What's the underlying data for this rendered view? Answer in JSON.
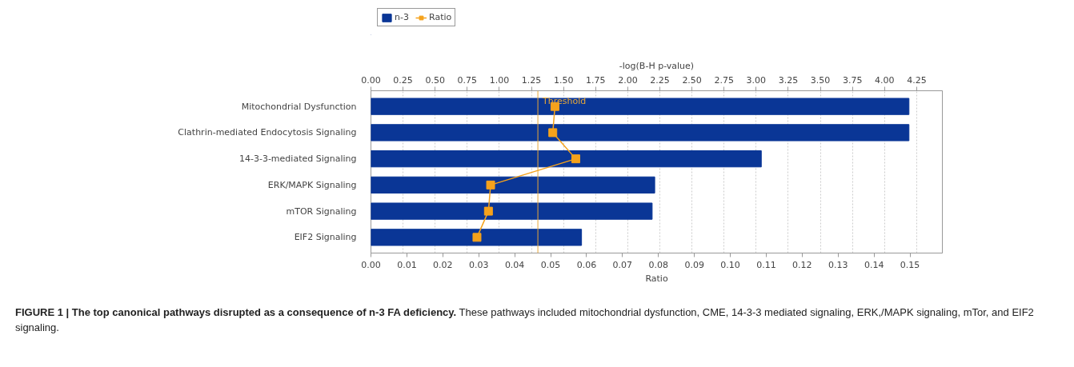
{
  "chart_data": {
    "type": "bar",
    "orientation": "horizontal",
    "title": "FIGURE 1 | The top canonical pathways disrupted as a consequence of n-3 FA deficiency.",
    "annotations": [
      "These pathways included mitochondrial dysfunction, CME, 14-3-3 mediated signaling, ERK,/MAPK signaling, mTor, and EIF2 signaling."
    ],
    "categories": [
      "Mitochondrial Dysfunction",
      "Clathrin-mediated Endocytosis Signaling",
      "14-3-3-mediated Signaling",
      "ERK/MAPK Signaling",
      "mTOR Signaling",
      "EIF2 Signaling"
    ],
    "series": [
      {
        "name": "n-3",
        "axis": "x2",
        "color": "#0a3696",
        "values": [
          4.19,
          4.19,
          3.04,
          2.21,
          2.19,
          1.64
        ]
      },
      {
        "name": "Ratio",
        "type": "line",
        "color": "#f5a21b",
        "values": [
          0.0512,
          0.0506,
          0.057,
          0.0333,
          0.0327,
          0.0295
        ]
      }
    ],
    "xlabel": "Ratio",
    "x2label": "-log(B-H p-value)",
    "xlim": [
      0,
      0.159
    ],
    "xticks": [
      {
        "value": 0,
        "label": "0.00"
      },
      {
        "value": 0.01,
        "label": "0.01"
      },
      {
        "value": 0.02,
        "label": "0.02"
      },
      {
        "value": 0.03,
        "label": "0.03"
      },
      {
        "value": 0.04,
        "label": "0.04"
      },
      {
        "value": 0.05,
        "label": "0.05"
      },
      {
        "value": 0.06,
        "label": "0.06"
      },
      {
        "value": 0.07,
        "label": "0.07"
      },
      {
        "value": 0.08,
        "label": "0.08"
      },
      {
        "value": 0.09,
        "label": "0.09"
      },
      {
        "value": 0.1,
        "label": "0.10"
      },
      {
        "value": 0.11,
        "label": "0.11"
      },
      {
        "value": 0.12,
        "label": "0.12"
      },
      {
        "value": 0.13,
        "label": "0.13"
      },
      {
        "value": 0.14,
        "label": "0.14"
      },
      {
        "value": 0.15,
        "label": "0.15"
      }
    ],
    "x2lim": [
      0,
      4.45
    ],
    "x2ticks": [
      {
        "value": 0,
        "label": "0.00"
      },
      0.25,
      {
        "value": 0.5,
        "label": "0.50"
      },
      0.75,
      {
        "value": 1,
        "label": "1.00"
      },
      1.25,
      {
        "value": 1.5,
        "label": "1.50"
      },
      1.75,
      {
        "value": 2,
        "label": "2.00"
      },
      2.25,
      {
        "value": 2.5,
        "label": "2.50"
      },
      2.75,
      {
        "value": 3,
        "label": "3.00"
      },
      3.25,
      {
        "value": 3.5,
        "label": "3.50"
      },
      3.75,
      {
        "value": 4,
        "label": "4.00"
      },
      4.25
    ],
    "ref_lines": [
      {
        "axis": "x2",
        "value": 1.3,
        "label": "Threshold",
        "color": "#e8a838"
      }
    ],
    "grid": true,
    "legend": "top left",
    "marker": "square",
    "line_style": "solid"
  }
}
